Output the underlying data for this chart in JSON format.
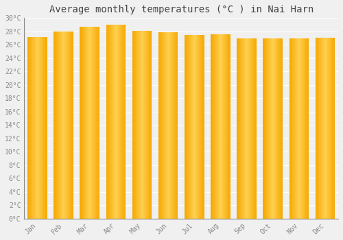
{
  "title": "Average monthly temperatures (°C ) in Nai Harn",
  "months": [
    "Jan",
    "Feb",
    "Mar",
    "Apr",
    "May",
    "Jun",
    "Jul",
    "Aug",
    "Sep",
    "Oct",
    "Nov",
    "Dec"
  ],
  "temperatures": [
    27.2,
    28.0,
    28.7,
    29.0,
    28.1,
    27.9,
    27.5,
    27.6,
    26.9,
    27.0,
    26.9,
    27.1
  ],
  "ylim": [
    0,
    30
  ],
  "yticks": [
    0,
    2,
    4,
    6,
    8,
    10,
    12,
    14,
    16,
    18,
    20,
    22,
    24,
    26,
    28,
    30
  ],
  "bar_color_left": "#F5A800",
  "bar_color_center": "#FFD050",
  "background_color": "#f0f0f0",
  "grid_color": "#ffffff",
  "title_fontsize": 10,
  "tick_fontsize": 7,
  "font_family": "monospace"
}
